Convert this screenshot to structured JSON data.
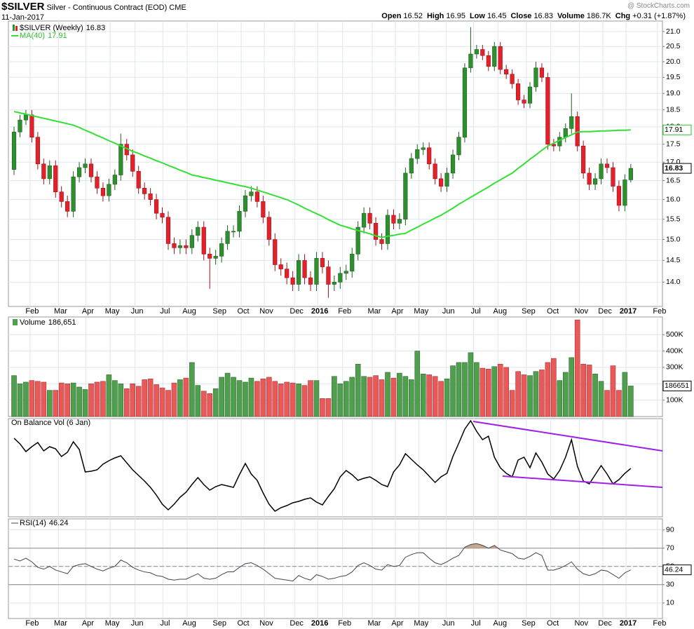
{
  "header": {
    "symbol": "$SILVER",
    "description": "Silver - Continuous Contract (EOD) CME",
    "date": "11-Jan-2017",
    "watermark": "@ StockCharts.com",
    "stats": [
      {
        "label": "Open",
        "text": "16.52"
      },
      {
        "label": "High",
        "text": "16.95"
      },
      {
        "label": "Low",
        "text": "16.45"
      },
      {
        "label": "Close",
        "text": "16.83"
      },
      {
        "label": "Volume",
        "text": "186.7K"
      },
      {
        "label": "Chg",
        "text": "+0.31 (+1.87%)"
      }
    ]
  },
  "chart_data": [
    {
      "type": "candlestick",
      "name": "$SILVER (Weekly)",
      "ma_name": "MA(40)",
      "log": true,
      "grid": true,
      "up_color": "#2f8f2f",
      "down_color": "#e3212b",
      "ma_color": "#33e033",
      "ylim": [
        13.46,
        21.36
      ],
      "yticks": [
        {
          "value": 14,
          "label": "14.0"
        },
        {
          "value": 14.5,
          "label": "14.5"
        },
        {
          "value": 15,
          "label": "15.0"
        },
        {
          "value": 15.5,
          "label": "15.5"
        },
        {
          "value": 16,
          "label": "16.0"
        },
        {
          "value": 16.5,
          "label": "16.5"
        },
        {
          "value": 17,
          "label": "17.0"
        },
        {
          "value": 17.5,
          "label": "17.5"
        },
        {
          "value": 18,
          "label": "18.0"
        },
        {
          "value": 18.5,
          "label": "18.5"
        },
        {
          "value": 19,
          "label": "19.0"
        },
        {
          "value": 19.5,
          "label": "19.5"
        },
        {
          "value": 20,
          "label": "20.0"
        },
        {
          "value": 20.5,
          "label": "20.5"
        },
        {
          "value": 21,
          "label": "21.0"
        }
      ],
      "xlim": [
        -0.95,
        109.34
      ],
      "xticks": [
        {
          "value": 2.7,
          "label": "Feb"
        },
        {
          "value": 7.5,
          "label": "Mar"
        },
        {
          "value": 12.1,
          "label": "Apr"
        },
        {
          "value": 16.2,
          "label": "May"
        },
        {
          "value": 20.4,
          "label": "Jun"
        },
        {
          "value": 25.1,
          "label": "Jul"
        },
        {
          "value": 29.2,
          "label": "Aug"
        },
        {
          "value": 34.3,
          "label": "Sep"
        },
        {
          "value": 38.3,
          "label": "Oct"
        },
        {
          "value": 42.2,
          "label": "Nov"
        },
        {
          "value": 47.3,
          "label": "Dec"
        },
        {
          "value": 51.2,
          "label": "2016"
        },
        {
          "value": 55.4,
          "label": "Feb"
        },
        {
          "value": 60.4,
          "label": "Mar"
        },
        {
          "value": 64.3,
          "label": "Apr"
        },
        {
          "value": 68.3,
          "label": "May"
        },
        {
          "value": 72.9,
          "label": "Jun"
        },
        {
          "value": 77.5,
          "label": "Jul"
        },
        {
          "value": 81.6,
          "label": "Aug"
        },
        {
          "value": 86.4,
          "label": "Sep"
        },
        {
          "value": 90.5,
          "label": "Oct"
        },
        {
          "value": 95.3,
          "label": "Nov"
        },
        {
          "value": 99.3,
          "label": "Dec"
        },
        {
          "value": 103.2,
          "label": "2017"
        },
        {
          "value": 108.5,
          "label": "Feb"
        }
      ],
      "open": [
        16.8,
        17.85,
        18.2,
        18.35,
        17.7,
        16.95,
        16.55,
        16.9,
        16.2,
        15.95,
        15.7,
        16.6,
        16.85,
        16.95,
        16.6,
        16.3,
        16.1,
        16.4,
        16.65,
        17.5,
        17.2,
        16.75,
        16.3,
        16.15,
        16.0,
        15.65,
        15.55,
        14.9,
        14.8,
        14.85,
        14.8,
        15.1,
        15.3,
        14.65,
        14.55,
        14.6,
        14.9,
        15.2,
        15.2,
        15.7,
        16.1,
        16.2,
        15.95,
        15.55,
        15.0,
        14.4,
        14.3,
        14.1,
        13.95,
        14.5,
        14.1,
        13.95,
        14.55,
        14.35,
        13.95,
        14.0,
        14.2,
        14.25,
        14.65,
        15.3,
        15.65,
        15.4,
        15.0,
        14.9,
        15.6,
        15.4,
        15.5,
        16.7,
        17.1,
        17.35,
        17.4,
        16.95,
        16.55,
        16.35,
        16.7,
        17.2,
        17.7,
        19.8,
        20.25,
        20.4,
        20.2,
        19.85,
        20.5,
        19.75,
        19.6,
        19.3,
        18.8,
        18.7,
        19.2,
        19.8,
        19.5,
        17.5,
        17.45,
        17.7,
        17.95,
        18.3,
        17.45,
        16.7,
        16.4,
        16.55,
        16.95,
        16.85,
        16.35,
        15.85,
        16.52
      ],
      "high": [
        18.0,
        18.35,
        18.5,
        18.5,
        17.85,
        17.1,
        17.05,
        17.05,
        16.35,
        16.1,
        16.75,
        17.0,
        17.1,
        17.1,
        16.75,
        16.45,
        16.55,
        16.8,
        17.8,
        17.65,
        17.35,
        16.9,
        16.45,
        16.3,
        16.15,
        15.8,
        15.7,
        15.05,
        15.0,
        15.0,
        15.25,
        15.45,
        15.45,
        14.8,
        14.75,
        15.05,
        15.35,
        15.35,
        15.85,
        16.25,
        16.35,
        16.35,
        16.1,
        15.7,
        15.15,
        14.55,
        14.45,
        14.25,
        14.65,
        14.65,
        14.25,
        14.7,
        14.7,
        14.5,
        14.15,
        14.35,
        14.4,
        14.8,
        15.45,
        15.8,
        15.8,
        15.55,
        15.15,
        15.75,
        15.75,
        15.65,
        16.85,
        17.25,
        17.5,
        17.55,
        17.55,
        17.1,
        16.7,
        16.85,
        17.35,
        17.85,
        19.95,
        21.15,
        20.55,
        20.55,
        20.35,
        20.65,
        20.65,
        19.9,
        19.75,
        19.45,
        18.95,
        19.35,
        20.0,
        19.95,
        19.65,
        17.65,
        17.85,
        18.1,
        19.0,
        18.45,
        17.6,
        16.85,
        16.7,
        17.1,
        17.1,
        17.0,
        16.5,
        16.67,
        16.95
      ],
      "low": [
        16.65,
        17.7,
        18.05,
        17.55,
        16.8,
        16.4,
        16.4,
        16.05,
        15.8,
        15.55,
        15.55,
        16.45,
        16.7,
        16.45,
        16.15,
        15.95,
        15.95,
        16.25,
        16.5,
        17.05,
        16.6,
        16.15,
        16.0,
        15.85,
        15.5,
        15.4,
        14.75,
        14.65,
        14.65,
        14.65,
        14.65,
        14.95,
        14.5,
        13.85,
        14.4,
        14.45,
        14.75,
        15.05,
        15.05,
        15.55,
        15.95,
        15.8,
        15.4,
        14.85,
        14.25,
        14.15,
        13.95,
        13.8,
        13.8,
        13.95,
        13.8,
        13.8,
        14.2,
        13.65,
        13.8,
        13.85,
        14.05,
        14.1,
        14.5,
        15.15,
        15.25,
        14.85,
        14.75,
        14.75,
        15.25,
        15.25,
        15.35,
        16.55,
        16.95,
        17.2,
        16.8,
        16.4,
        16.2,
        16.2,
        16.55,
        17.05,
        17.55,
        19.65,
        20.1,
        20.05,
        19.7,
        19.7,
        19.6,
        19.45,
        19.15,
        18.65,
        18.55,
        18.55,
        19.05,
        19.35,
        17.35,
        17.3,
        17.3,
        17.55,
        17.8,
        17.3,
        16.55,
        16.25,
        16.25,
        16.4,
        16.7,
        16.2,
        15.7,
        15.7,
        16.45
      ],
      "close": [
        17.85,
        18.2,
        18.35,
        17.7,
        16.95,
        16.55,
        16.9,
        16.2,
        15.95,
        15.7,
        16.6,
        16.85,
        16.95,
        16.6,
        16.3,
        16.1,
        16.4,
        16.65,
        17.5,
        17.2,
        16.75,
        16.3,
        16.15,
        16.0,
        15.65,
        15.55,
        14.9,
        14.8,
        14.85,
        14.8,
        15.1,
        15.3,
        14.65,
        14.55,
        14.6,
        14.9,
        15.2,
        15.2,
        15.7,
        16.1,
        16.2,
        15.95,
        15.55,
        15.0,
        14.4,
        14.3,
        14.1,
        13.95,
        14.5,
        14.1,
        13.95,
        14.55,
        14.35,
        13.95,
        14.0,
        14.2,
        14.25,
        14.65,
        15.3,
        15.65,
        15.4,
        15.0,
        14.9,
        15.6,
        15.4,
        15.5,
        16.7,
        17.1,
        17.35,
        17.4,
        16.95,
        16.55,
        16.35,
        16.7,
        17.2,
        17.7,
        19.8,
        20.25,
        20.4,
        20.2,
        19.85,
        20.5,
        19.75,
        19.6,
        19.3,
        18.8,
        18.7,
        19.2,
        19.8,
        19.5,
        17.5,
        17.45,
        17.7,
        17.95,
        18.3,
        17.45,
        16.7,
        16.4,
        16.55,
        16.95,
        16.85,
        16.35,
        15.85,
        16.52,
        16.83
      ],
      "ma": [
        18.45,
        18.41,
        18.37,
        18.33,
        18.29,
        18.25,
        18.21,
        18.17,
        18.13,
        18.09,
        18.05,
        17.98,
        17.9,
        17.83,
        17.75,
        17.68,
        17.6,
        17.53,
        17.45,
        17.38,
        17.3,
        17.24,
        17.17,
        17.11,
        17.04,
        16.98,
        16.91,
        16.85,
        16.78,
        16.72,
        16.65,
        16.62,
        16.58,
        16.55,
        16.51,
        16.48,
        16.44,
        16.41,
        16.37,
        16.34,
        16.3,
        16.25,
        16.2,
        16.15,
        16.1,
        16.05,
        16.0,
        15.93,
        15.86,
        15.78,
        15.71,
        15.64,
        15.57,
        15.49,
        15.42,
        15.35,
        15.31,
        15.26,
        15.22,
        15.18,
        15.14,
        15.09,
        15.05,
        15.08,
        15.1,
        15.13,
        15.15,
        15.23,
        15.3,
        15.38,
        15.45,
        15.53,
        15.6,
        15.69,
        15.78,
        15.88,
        15.97,
        16.06,
        16.15,
        16.24,
        16.33,
        16.43,
        16.52,
        16.61,
        16.7,
        16.83,
        16.95,
        17.08,
        17.2,
        17.33,
        17.45,
        17.53,
        17.61,
        17.69,
        17.77,
        17.85,
        17.86,
        17.86,
        17.87,
        17.88,
        17.88,
        17.89,
        17.9,
        17.9,
        17.91
      ]
    },
    {
      "type": "volume",
      "name": "Volume",
      "value_label": "186,651",
      "grid": true,
      "ylim": [
        0,
        608000
      ],
      "yticks": [
        {
          "value": 100000,
          "label": "100K"
        },
        {
          "value": 200000,
          "label": "200K"
        },
        {
          "value": 300000,
          "label": "300K"
        },
        {
          "value": 400000,
          "label": "400K"
        },
        {
          "value": 500000,
          "label": "500K"
        }
      ],
      "values": [
        250000,
        200000,
        210000,
        220000,
        215000,
        210000,
        160000,
        160000,
        205000,
        200000,
        205000,
        180000,
        165000,
        200000,
        210000,
        215000,
        255000,
        220000,
        200000,
        170000,
        200000,
        185000,
        225000,
        230000,
        195000,
        175000,
        160000,
        205000,
        225000,
        235000,
        330000,
        190000,
        155000,
        140000,
        170000,
        240000,
        265000,
        240000,
        220000,
        210000,
        235000,
        215000,
        230000,
        240000,
        215000,
        200000,
        210000,
        205000,
        200000,
        190000,
        220000,
        220000,
        110000,
        110000,
        245000,
        200000,
        215000,
        240000,
        320000,
        245000,
        240000,
        250000,
        225000,
        270000,
        235000,
        265000,
        245000,
        225000,
        400000,
        260000,
        255000,
        245000,
        215000,
        230000,
        310000,
        330000,
        330000,
        390000,
        330000,
        295000,
        290000,
        305000,
        320000,
        300000,
        160000,
        275000,
        255000,
        250000,
        275000,
        285000,
        330000,
        355000,
        220000,
        270000,
        360000,
        590000,
        320000,
        315000,
        260000,
        215000,
        160000,
        310000,
        160000,
        270000,
        186651
      ]
    },
    {
      "type": "obv",
      "name": "On Balance Vol (6 Jan)",
      "color": "#000000",
      "ylim": [
        0,
        140
      ],
      "values": [
        112,
        104,
        93,
        100,
        106,
        94,
        100,
        97,
        86,
        92,
        107,
        96,
        64,
        65,
        67,
        75,
        80,
        84,
        87,
        77,
        67,
        59,
        51,
        42,
        31,
        18,
        10,
        18,
        28,
        35,
        46,
        56,
        46,
        38,
        43,
        46,
        44,
        42,
        60,
        76,
        61,
        52,
        34,
        18,
        8,
        13,
        16,
        20,
        22,
        25,
        27,
        21,
        17,
        29,
        40,
        57,
        66,
        60,
        52,
        55,
        57,
        52,
        46,
        43,
        64,
        74,
        90,
        82,
        74,
        67,
        58,
        49,
        57,
        62,
        86,
        105,
        125,
        137,
        122,
        110,
        115,
        85,
        70,
        62,
        57,
        81,
        85,
        70,
        91,
        78,
        61,
        54,
        66,
        85,
        110,
        72,
        51,
        47,
        60,
        73,
        61,
        47,
        53,
        62,
        69
      ]
    },
    {
      "type": "rsi",
      "name": "RSI(14)",
      "color": "#444444",
      "grid": true,
      "ylim": [
        -7,
        102
      ],
      "yticks": [
        10,
        30,
        50,
        70,
        90
      ],
      "levels": [
        30,
        70
      ],
      "midline": 50,
      "overbought_color": "#c9a78f",
      "values": [
        58,
        56,
        59,
        55,
        49,
        47,
        50,
        46,
        44,
        42,
        50,
        52,
        53,
        50,
        47,
        45,
        48,
        50,
        57,
        54,
        49,
        46,
        44,
        43,
        40,
        39,
        36,
        35,
        36,
        36,
        39,
        42,
        37,
        36,
        37,
        41,
        44,
        44,
        49,
        53,
        54,
        51,
        47,
        42,
        37,
        36,
        35,
        34,
        40,
        37,
        35,
        41,
        39,
        36,
        37,
        39,
        40,
        44,
        51,
        54,
        51,
        47,
        46,
        52,
        50,
        51,
        60,
        63,
        65,
        65,
        59,
        54,
        52,
        55,
        59,
        62,
        71,
        74,
        75,
        73,
        70,
        73,
        68,
        66,
        64,
        59,
        58,
        61,
        65,
        62,
        46,
        46,
        48,
        51,
        55,
        47,
        42,
        40,
        42,
        46,
        45,
        41,
        37,
        43,
        46.24
      ]
    }
  ]
}
